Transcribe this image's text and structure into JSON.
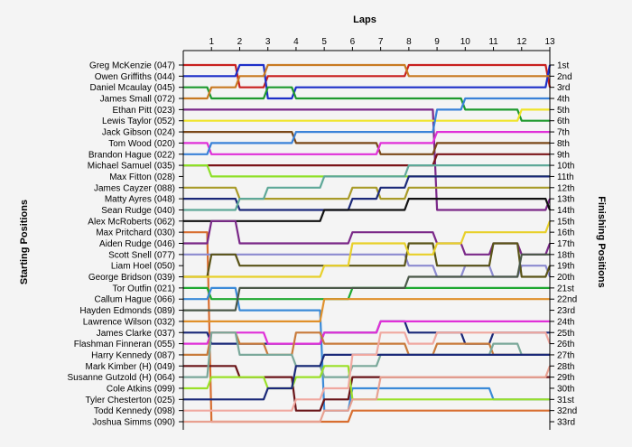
{
  "chart_data": {
    "type": "line",
    "title": "",
    "xlabel": "Laps",
    "ylabel": "Starting Positions",
    "y2label": "Finishing Positions",
    "laps": [
      1,
      2,
      3,
      4,
      5,
      6,
      7,
      8,
      9,
      10,
      11,
      12,
      13
    ],
    "xlim": [
      0,
      13
    ],
    "ylim": [
      1,
      33
    ],
    "grid": false,
    "finish_labels": [
      "1st",
      "2nd",
      "3rd",
      "4th",
      "5th",
      "6th",
      "7th",
      "8th",
      "9th",
      "10th",
      "11th",
      "12th",
      "13th",
      "14th",
      "15th",
      "16th",
      "17th",
      "18th",
      "19th",
      "20th",
      "21st",
      "22nd",
      "23rd",
      "24th",
      "25th",
      "26th",
      "27th",
      "28th",
      "29th",
      "30th",
      "31st",
      "32nd",
      "33rd"
    ],
    "series": [
      {
        "name": "Greg McKenzie (047)",
        "color": "#c8201e",
        "positions": [
          1,
          1,
          3,
          2,
          2,
          2,
          2,
          2,
          1,
          1,
          1,
          1,
          1,
          3
        ]
      },
      {
        "name": "Owen Griffiths (044)",
        "color": "#1d2fc8",
        "positions": [
          2,
          2,
          1,
          4,
          3,
          3,
          3,
          3,
          3,
          3,
          3,
          3,
          3,
          1
        ]
      },
      {
        "name": "Daniel Mcaulay (045)",
        "color": "#1e9a2e",
        "positions": [
          3,
          4,
          4,
          3,
          4,
          4,
          4,
          4,
          4,
          4,
          5,
          5,
          6,
          6
        ]
      },
      {
        "name": "James Small (072)",
        "color": "#c87a22",
        "positions": [
          4,
          3,
          2,
          1,
          1,
          1,
          1,
          1,
          2,
          2,
          2,
          2,
          2,
          2
        ]
      },
      {
        "name": "Ethan Pitt (023)",
        "color": "#7a2888",
        "positions": [
          5,
          5,
          5,
          5,
          5,
          5,
          5,
          5,
          5,
          14,
          14,
          14,
          14,
          13
        ]
      },
      {
        "name": "Lewis Taylor (052)",
        "color": "#f0e42a",
        "positions": [
          6,
          6,
          6,
          6,
          6,
          6,
          6,
          6,
          6,
          6,
          6,
          6,
          5,
          5
        ]
      },
      {
        "name": "Jack Gibson (024)",
        "color": "#7a4818",
        "positions": [
          7,
          7,
          7,
          7,
          8,
          8,
          8,
          9,
          9,
          8,
          8,
          8,
          8,
          8
        ]
      },
      {
        "name": "Tom Wood (020)",
        "color": "#e030d8",
        "positions": [
          8,
          9,
          9,
          9,
          9,
          9,
          9,
          8,
          8,
          7,
          7,
          7,
          7,
          7
        ]
      },
      {
        "name": "Brandon Hague (022)",
        "color": "#3a82d8",
        "positions": [
          9,
          8,
          8,
          8,
          7,
          7,
          7,
          7,
          7,
          5,
          4,
          4,
          4,
          4
        ]
      },
      {
        "name": "Michael Samuel (035)",
        "color": "#7a1418",
        "positions": [
          10,
          10,
          10,
          10,
          10,
          10,
          10,
          10,
          10,
          9,
          9,
          9,
          9,
          9
        ]
      },
      {
        "name": "Max Fitton (028)",
        "color": "#8ee028",
        "positions": [
          10,
          11,
          11,
          11,
          11,
          11,
          11,
          11,
          11,
          11,
          11,
          11,
          11,
          11
        ]
      },
      {
        "name": "James Cayzer (088)",
        "color": "#a89a28",
        "positions": [
          12,
          12,
          13,
          13,
          13,
          13,
          12,
          13,
          12,
          12,
          12,
          12,
          12,
          12
        ]
      },
      {
        "name": "Matty Ayres (048)",
        "color": "#1a2878",
        "positions": [
          13,
          13,
          14,
          14,
          14,
          14,
          13,
          12,
          11,
          11,
          11,
          11,
          11,
          11
        ]
      },
      {
        "name": "Sean Rudge (040)",
        "color": "#5ea898",
        "positions": [
          14,
          14,
          13,
          12,
          12,
          11,
          11,
          11,
          10,
          10,
          10,
          10,
          10,
          10
        ]
      },
      {
        "name": "Alex McRoberts (062)",
        "color": "#101010",
        "positions": [
          15,
          15,
          15,
          15,
          15,
          14,
          14,
          14,
          13,
          13,
          13,
          13,
          13,
          14
        ]
      },
      {
        "name": "Max Pritchard (030)",
        "color": "#d86e30",
        "positions": [
          16,
          33,
          33,
          33,
          33,
          33,
          32,
          32,
          32,
          32,
          32,
          32,
          32,
          32
        ]
      },
      {
        "name": "Aiden Rudge (046)",
        "color": "#7a2888",
        "positions": [
          17,
          15,
          17,
          17,
          17,
          17,
          16,
          16,
          16,
          17,
          18,
          17,
          18,
          17
        ]
      },
      {
        "name": "Scott Snell (077)",
        "color": "#8c8ad0",
        "positions": [
          18,
          18,
          18,
          18,
          18,
          18,
          18,
          18,
          19,
          20,
          19,
          20,
          19,
          20
        ]
      },
      {
        "name": "Liam Hoel (050)",
        "color": "#5a5418",
        "positions": [
          20,
          18,
          19,
          19,
          19,
          19,
          19,
          19,
          17,
          19,
          19,
          17,
          20,
          19
        ]
      },
      {
        "name": "George Bridson (039)",
        "color": "#e8d02a",
        "positions": [
          20,
          20,
          20,
          20,
          20,
          19,
          17,
          17,
          18,
          17,
          16,
          16,
          16,
          15
        ]
      },
      {
        "name": "Tor Outfin (021)",
        "color": "#1ea830",
        "positions": [
          21,
          22,
          22,
          22,
          22,
          22,
          21,
          21,
          21,
          21,
          21,
          21,
          21,
          21
        ]
      },
      {
        "name": "Callum Hague (066)",
        "color": "#3a8ad8",
        "positions": [
          22,
          21,
          23,
          23,
          23,
          32,
          30,
          30,
          30,
          30,
          30,
          31,
          31,
          31
        ]
      },
      {
        "name": "Hayden Edmonds (089)",
        "color": "#4a5848",
        "positions": [
          23,
          23,
          21,
          21,
          21,
          21,
          21,
          21,
          20,
          20,
          20,
          20,
          18,
          18
        ]
      },
      {
        "name": "Lawrence Wilson (032)",
        "color": "#e0902a",
        "positions": [
          24,
          24,
          24,
          24,
          24,
          22,
          22,
          22,
          22,
          22,
          22,
          22,
          22,
          22
        ]
      },
      {
        "name": "James Clarke (037)",
        "color": "#1a2878",
        "positions": [
          25,
          26,
          26,
          26,
          26,
          25,
          25,
          24,
          25,
          25,
          26,
          25,
          25,
          25
        ]
      },
      {
        "name": "Flashman Finneran (055)",
        "color": "#e030d8",
        "positions": [
          26,
          25,
          25,
          26,
          26,
          25,
          25,
          24,
          24,
          24,
          24,
          24,
          24,
          24
        ]
      },
      {
        "name": "Harry Kennedy (087)",
        "color": "#c87a3a",
        "positions": [
          27,
          25,
          26,
          27,
          25,
          26,
          26,
          26,
          27,
          26,
          26,
          27,
          27,
          27
        ]
      },
      {
        "name": "Mark Kimber (H) (049)",
        "color": "#6a1418",
        "positions": [
          28,
          28,
          29,
          29,
          32,
          31,
          29,
          29,
          29,
          29,
          29,
          29,
          29,
          29
        ]
      },
      {
        "name": "Susanne Gutzold (H) (064)",
        "color": "#7aa89a",
        "positions": [
          29,
          25,
          27,
          27,
          28,
          29,
          28,
          27,
          27,
          27,
          27,
          26,
          27,
          27
        ]
      },
      {
        "name": "Cole Atkins (099)",
        "color": "#9ae028",
        "positions": [
          30,
          29,
          29,
          30,
          29,
          28,
          31,
          31,
          31,
          31,
          31,
          31,
          31,
          31
        ]
      },
      {
        "name": "Tyler Chesterton (025)",
        "color": "#1a2878",
        "positions": [
          31,
          31,
          31,
          30,
          28,
          27,
          27,
          27,
          27,
          27,
          27,
          27,
          27,
          27
        ]
      },
      {
        "name": "Todd Kennedy (098)",
        "color": "#f0a8a0",
        "positions": [
          32,
          32,
          32,
          32,
          31,
          30,
          27,
          25,
          26,
          25,
          25,
          25,
          25,
          26
        ]
      },
      {
        "name": "Joshua Simms (090)",
        "color": "#e8a090",
        "positions": [
          33,
          33,
          33,
          33,
          33,
          32,
          31,
          29,
          29,
          29,
          29,
          29,
          29,
          28
        ]
      }
    ]
  }
}
